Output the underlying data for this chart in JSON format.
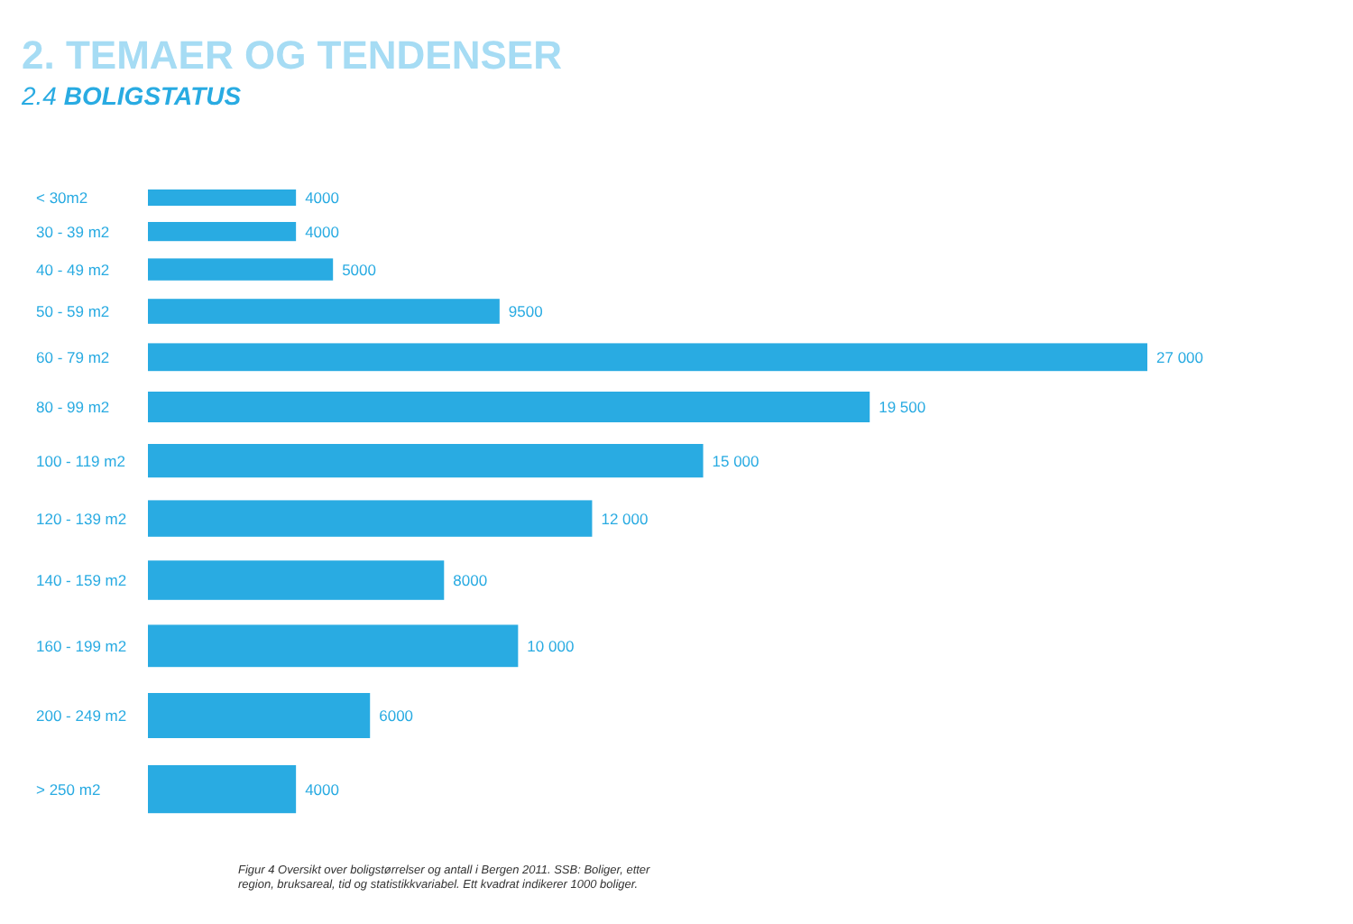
{
  "chart_data": {
    "type": "bar",
    "orientation": "horizontal",
    "title": "2. TEMAER OG TENDENSER",
    "subtitle": "2.4 BOLIGSTATUS",
    "categories": [
      "< 30m2",
      "30 - 39 m2",
      "40 - 49 m2",
      "50 - 59 m2",
      "60 - 79 m2",
      "80 - 99 m2",
      "100 - 119 m2",
      "120 - 139 m2",
      "140 - 159 m2",
      "160 - 199 m2",
      "200 - 249 m2",
      "> 250 m2"
    ],
    "values": [
      4000,
      4000,
      5000,
      9500,
      27000,
      19500,
      15000,
      12000,
      8000,
      10000,
      6000,
      4000
    ],
    "value_labels": [
      "4000",
      "4000",
      "5000",
      "9500",
      "27 000",
      "19 500",
      "15 000",
      "12 000",
      "8000",
      "10 000",
      "6000",
      "4000"
    ],
    "color": "#29abe2",
    "annotations": [
      "Figur 4 Oversikt over boligstørrelser og antall i Bergen 2011. SSB: Boliger, etter region, bruksareal, tid og statistikkvariabel. Ett kvadrat indikerer 1000 boliger."
    ]
  }
}
